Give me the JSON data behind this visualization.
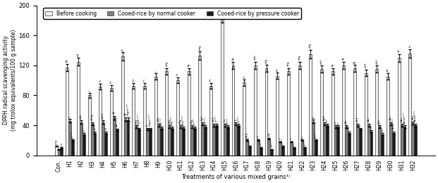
{
  "categories": [
    "Con.",
    "H1",
    "H2",
    "H3",
    "H4",
    "H5",
    "H6",
    "H7",
    "H8",
    "H9",
    "H10",
    "H11",
    "H12",
    "H13",
    "H14",
    "H15",
    "H16",
    "H17",
    "H18",
    "H19",
    "H20",
    "H21",
    "H22",
    "H23",
    "H24",
    "H25",
    "H26",
    "H27",
    "H28",
    "H29",
    "H30",
    "H31",
    "H32"
  ],
  "before_cooking": [
    12,
    117,
    125,
    80,
    92,
    90,
    132,
    93,
    93,
    105,
    112,
    100,
    112,
    133,
    93,
    185,
    120,
    97,
    120,
    116,
    106,
    112,
    120,
    135,
    115,
    112,
    120,
    116,
    110,
    115,
    105,
    130,
    136
  ],
  "normal_cooker": [
    8,
    46,
    44,
    42,
    44,
    50,
    48,
    38,
    35,
    40,
    38,
    38,
    38,
    42,
    40,
    40,
    42,
    20,
    20,
    22,
    18,
    18,
    20,
    45,
    42,
    38,
    38,
    40,
    40,
    38,
    42,
    40,
    43
  ],
  "pressure_cooker": [
    10,
    20,
    28,
    30,
    30,
    34,
    48,
    35,
    35,
    36,
    36,
    36,
    36,
    38,
    40,
    38,
    40,
    12,
    10,
    8,
    12,
    10,
    10,
    20,
    40,
    38,
    30,
    35,
    32,
    28,
    30,
    38,
    40
  ],
  "title": "",
  "ylabel": "DPPH radical scavenging activity\n(mg trolox equivalents/100 g sample)",
  "xlabel": "Treatments of various mixed grains¹⁾",
  "ylim": [
    0,
    200
  ],
  "yticks": [
    0,
    40,
    80,
    120,
    160,
    200
  ],
  "legend_labels": [
    "Before cooking",
    "Cooed-rice by normal cooker",
    "Cooed-rice by pressure cooker"
  ],
  "bar_colors": [
    "#f0f0f0",
    "#808080",
    "#1a1a1a"
  ],
  "bar_edgecolor": "#333333",
  "figsize": [
    6.21,
    2.6
  ],
  "dpi": 100
}
